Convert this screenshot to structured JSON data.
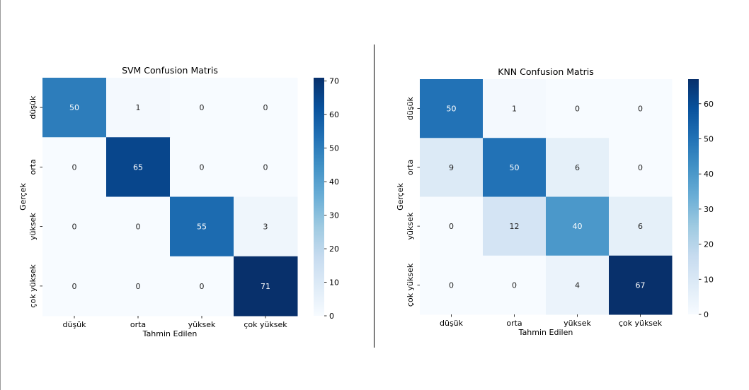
{
  "colors": {
    "cmap": [
      "#f7fbff",
      "#deebf7",
      "#c6dbef",
      "#9ecae1",
      "#6baed6",
      "#4292c6",
      "#2171b5",
      "#08519c",
      "#08306b"
    ],
    "divider": "#000000",
    "text_dark": "#262626",
    "text_light": "#ffffff"
  },
  "chart_data": [
    {
      "type": "heatmap",
      "title": "SVM Confusion Matris",
      "xlabel": "Tahmin Edilen",
      "ylabel": "Gerçek",
      "x_categories": [
        "düşük",
        "orta",
        "yüksek",
        "çok yüksek"
      ],
      "y_categories": [
        "düşük",
        "orta",
        "yüksek",
        "çok yüksek"
      ],
      "values": [
        [
          50,
          1,
          0,
          0
        ],
        [
          0,
          65,
          0,
          0
        ],
        [
          0,
          0,
          55,
          3
        ],
        [
          0,
          0,
          0,
          71
        ]
      ],
      "colorbar": {
        "min": 0,
        "max": 71,
        "ticks": [
          0,
          10,
          20,
          30,
          40,
          50,
          60,
          70
        ]
      },
      "colormap": "Blues"
    },
    {
      "type": "heatmap",
      "title": "KNN Confusion Matris",
      "xlabel": "Tahmin Edilen",
      "ylabel": "Gerçek",
      "x_categories": [
        "düşük",
        "orta",
        "yüksek",
        "çok yüksek"
      ],
      "y_categories": [
        "düşük",
        "orta",
        "yüksek",
        "çok yüksek"
      ],
      "values": [
        [
          50,
          1,
          0,
          0
        ],
        [
          9,
          50,
          6,
          0
        ],
        [
          0,
          12,
          40,
          6
        ],
        [
          0,
          0,
          4,
          67
        ]
      ],
      "colorbar": {
        "min": 0,
        "max": 67,
        "ticks": [
          0,
          10,
          20,
          30,
          40,
          50,
          60
        ]
      },
      "colormap": "Blues"
    }
  ]
}
